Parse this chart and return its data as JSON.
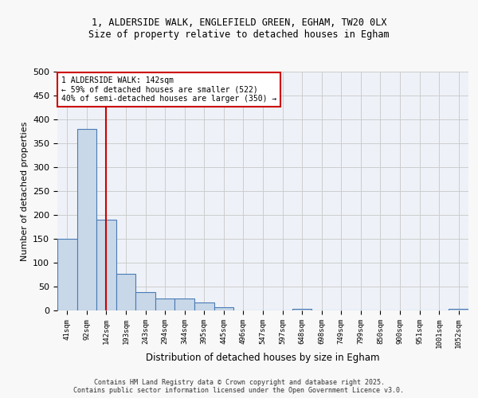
{
  "title1": "1, ALDERSIDE WALK, ENGLEFIELD GREEN, EGHAM, TW20 0LX",
  "title2": "Size of property relative to detached houses in Egham",
  "xlabel": "Distribution of detached houses by size in Egham",
  "ylabel": "Number of detached properties",
  "categories": [
    "41sqm",
    "92sqm",
    "142sqm",
    "193sqm",
    "243sqm",
    "294sqm",
    "344sqm",
    "395sqm",
    "445sqm",
    "496sqm",
    "547sqm",
    "597sqm",
    "648sqm",
    "698sqm",
    "749sqm",
    "799sqm",
    "850sqm",
    "900sqm",
    "951sqm",
    "1001sqm",
    "1052sqm"
  ],
  "values": [
    150,
    380,
    190,
    76,
    38,
    25,
    25,
    16,
    6,
    0,
    0,
    0,
    4,
    0,
    0,
    0,
    0,
    0,
    0,
    0,
    3
  ],
  "bar_color": "#c8d8e8",
  "bar_edge_color": "#4a7ab5",
  "vline_x": 2,
  "vline_color": "#cc0000",
  "annotation_text": "1 ALDERSIDE WALK: 142sqm\n← 59% of detached houses are smaller (522)\n40% of semi-detached houses are larger (350) →",
  "annotation_box_color": "#ffffff",
  "annotation_box_edge_color": "#cc0000",
  "ylim": [
    0,
    500
  ],
  "yticks": [
    0,
    50,
    100,
    150,
    200,
    250,
    300,
    350,
    400,
    450,
    500
  ],
  "grid_color": "#cccccc",
  "bg_color": "#eef2f8",
  "fig_bg_color": "#f8f8f8",
  "footer_line1": "Contains HM Land Registry data © Crown copyright and database right 2025.",
  "footer_line2": "Contains public sector information licensed under the Open Government Licence v3.0."
}
